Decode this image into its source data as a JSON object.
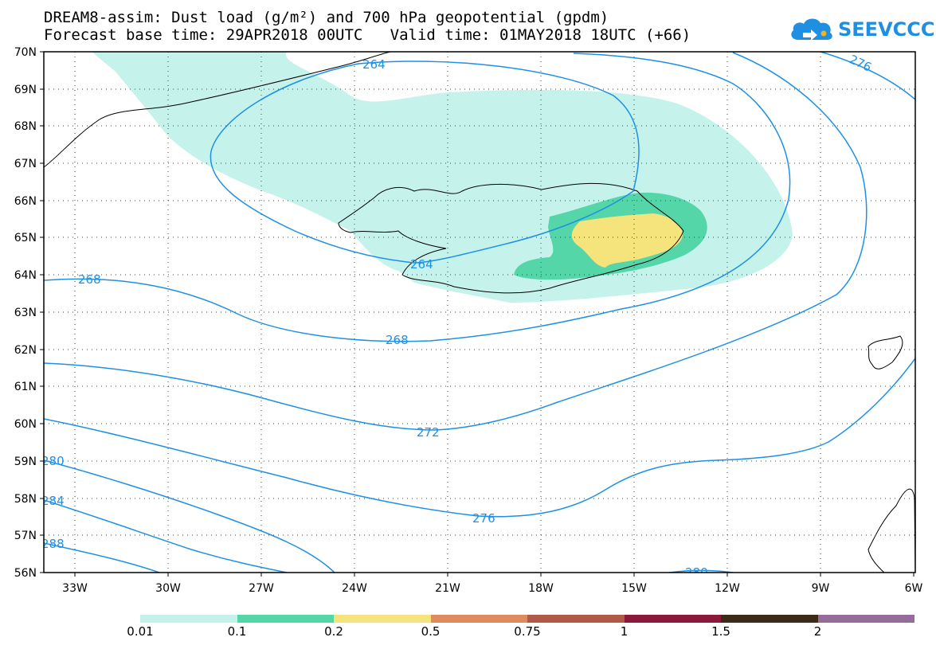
{
  "title": {
    "line1": "DREAM8-assim: Dust load (g/m²) and 700 hPa geopotential (gpdm)",
    "line2": "Forecast base time: 29APR2018 00UTC   Valid time: 01MAY2018 18UTC (+66)"
  },
  "logo": {
    "text": "SEEVCCC",
    "icon": "cloud-logo-icon",
    "color": "#1e8fe1"
  },
  "map": {
    "region": "North Atlantic / Iceland",
    "lat_labels": [
      "70N",
      "69N",
      "68N",
      "67N",
      "66N",
      "65N",
      "64N",
      "63N",
      "62N",
      "61N",
      "60N",
      "59N",
      "58N",
      "57N",
      "56N"
    ],
    "lon_labels": [
      "33W",
      "30W",
      "27W",
      "24W",
      "21W",
      "18W",
      "15W",
      "12W",
      "9W",
      "6W"
    ],
    "contour_color": "#1e90e6",
    "contour_labels": [
      "264",
      "276",
      "268",
      "264",
      "268",
      "272",
      "276",
      "280",
      "284",
      "288"
    ],
    "dust_fill_colors": {
      "0.01": "#c6f2ec",
      "0.1": "#55d6a8",
      "0.2": "#f5e47c"
    }
  },
  "colorbar": {
    "colors": [
      "#c6f2ec",
      "#55d6a8",
      "#f5e47c",
      "#e08a5f",
      "#b25a48",
      "#8b1a3a",
      "#3d2b18",
      "#956c9a"
    ],
    "labels": [
      "0.01",
      "0.1",
      "0.2",
      "0.5",
      "0.75",
      "1",
      "1.5",
      "2"
    ]
  }
}
